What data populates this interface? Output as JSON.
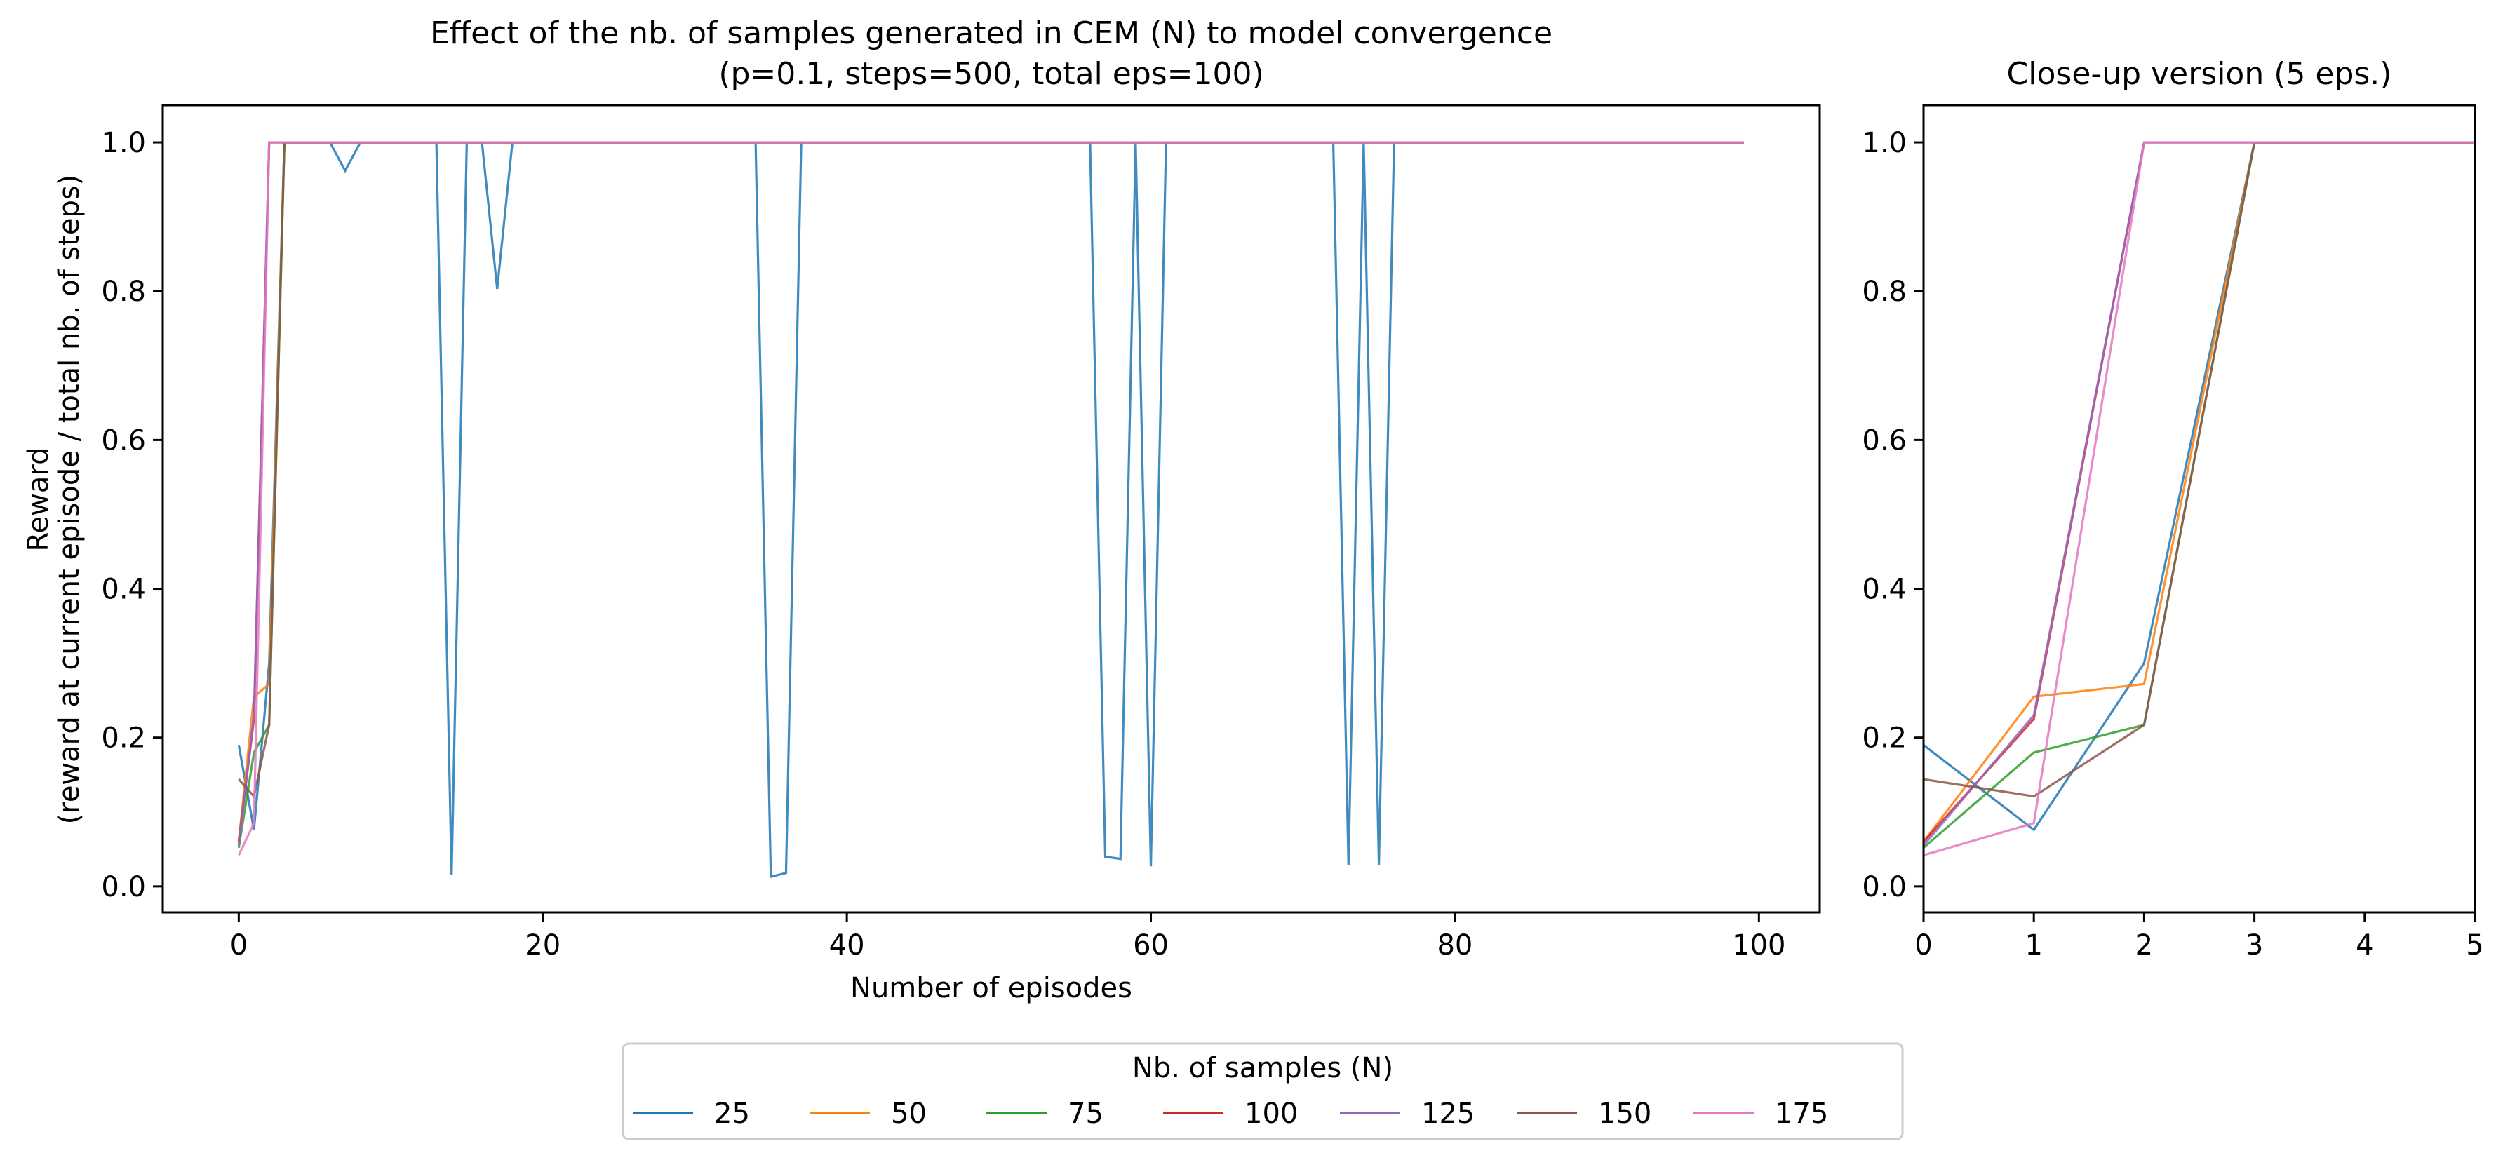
{
  "figure": {
    "legend": {
      "title": "Nb. of samples (N)",
      "placement": "bottom-center"
    }
  },
  "chart_data": [
    {
      "type": "line",
      "title": "Effect of the nb. of samples generated in CEM (N) to model convergence",
      "subtitle": "(p=0.1, steps=500, total eps=100)",
      "xlabel": "Number of episodes",
      "ylabel": "Reward",
      "ylabel2": "(reward at current episode / total nb. of steps)",
      "xlim": [
        -5,
        104
      ],
      "ylim": [
        -0.035,
        1.05
      ],
      "xticks": [
        0,
        20,
        40,
        60,
        80,
        100
      ],
      "yticks": [
        0.0,
        0.2,
        0.4,
        0.6,
        0.8,
        1.0
      ],
      "xtick_labels": [
        "0",
        "20",
        "40",
        "60",
        "80",
        "100"
      ],
      "ytick_labels": [
        "0.0",
        "0.2",
        "0.4",
        "0.6",
        "0.8",
        "1.0"
      ],
      "grid": false,
      "series": [
        {
          "name": "25",
          "color": "#1f77b4",
          "points": [
            [
              0,
              0.19
            ],
            [
              1,
              0.076
            ],
            [
              2,
              0.3
            ],
            [
              3,
              1.0
            ],
            [
              5,
              1.0
            ],
            [
              6,
              1.0
            ],
            [
              7,
              0.962
            ],
            [
              8,
              1.0
            ],
            [
              13,
              1.0
            ],
            [
              14,
              0.015
            ],
            [
              15,
              1.0
            ],
            [
              16,
              1.0
            ],
            [
              17,
              0.803
            ],
            [
              18,
              1.0
            ],
            [
              34,
              1.0
            ],
            [
              35,
              0.013
            ],
            [
              36,
              0.018
            ],
            [
              37,
              1.0
            ],
            [
              56,
              1.0
            ],
            [
              57,
              0.04
            ],
            [
              58,
              0.037
            ],
            [
              59,
              1.0
            ],
            [
              60,
              0.027
            ],
            [
              61,
              1.0
            ],
            [
              72,
              1.0
            ],
            [
              73,
              0.029
            ],
            [
              74,
              1.0
            ],
            [
              75,
              0.029
            ],
            [
              76,
              1.0
            ],
            [
              99,
              1.0
            ]
          ]
        },
        {
          "name": "50",
          "color": "#ff7f0e",
          "points": [
            [
              0,
              0.06
            ],
            [
              1,
              0.255
            ],
            [
              2,
              0.272
            ],
            [
              3,
              1.0
            ],
            [
              99,
              1.0
            ]
          ]
        },
        {
          "name": "75",
          "color": "#2ca02c",
          "points": [
            [
              0,
              0.052
            ],
            [
              1,
              0.18
            ],
            [
              2,
              0.217
            ],
            [
              3,
              1.0
            ],
            [
              99,
              1.0
            ]
          ]
        },
        {
          "name": "100",
          "color": "#d62728",
          "points": [
            [
              0,
              0.06
            ],
            [
              1,
              0.225
            ],
            [
              2,
              1.0
            ],
            [
              99,
              1.0
            ]
          ]
        },
        {
          "name": "125",
          "color": "#9467bd",
          "points": [
            [
              0,
              0.055
            ],
            [
              1,
              0.23
            ],
            [
              2,
              1.0
            ],
            [
              99,
              1.0
            ]
          ]
        },
        {
          "name": "150",
          "color": "#8c564b",
          "points": [
            [
              0,
              0.144
            ],
            [
              1,
              0.121
            ],
            [
              2,
              0.217
            ],
            [
              3,
              1.0
            ],
            [
              99,
              1.0
            ]
          ]
        },
        {
          "name": "175",
          "color": "#e377c2",
          "points": [
            [
              0,
              0.042
            ],
            [
              1,
              0.085
            ],
            [
              2,
              1.0
            ],
            [
              99,
              1.0
            ]
          ]
        }
      ]
    },
    {
      "type": "line",
      "title": "Close-up version (5 eps.)",
      "xlim": [
        0,
        5
      ],
      "ylim": [
        -0.035,
        1.05
      ],
      "xticks": [
        0,
        1,
        2,
        3,
        4,
        5
      ],
      "yticks": [
        0.0,
        0.2,
        0.4,
        0.6,
        0.8,
        1.0
      ],
      "xtick_labels": [
        "0",
        "1",
        "2",
        "3",
        "4",
        "5"
      ],
      "ytick_labels": [
        "0.0",
        "0.2",
        "0.4",
        "0.6",
        "0.8",
        "1.0"
      ],
      "grid": false,
      "series": [
        {
          "name": "25",
          "color": "#1f77b4",
          "points": [
            [
              0,
              0.19
            ],
            [
              1,
              0.076
            ],
            [
              2,
              0.3
            ],
            [
              3,
              1.0
            ],
            [
              4,
              1.0
            ],
            [
              5,
              1.0
            ]
          ]
        },
        {
          "name": "50",
          "color": "#ff7f0e",
          "points": [
            [
              0,
              0.06
            ],
            [
              1,
              0.255
            ],
            [
              2,
              0.272
            ],
            [
              3,
              1.0
            ],
            [
              4,
              1.0
            ],
            [
              5,
              1.0
            ]
          ]
        },
        {
          "name": "75",
          "color": "#2ca02c",
          "points": [
            [
              0,
              0.052
            ],
            [
              1,
              0.18
            ],
            [
              2,
              0.217
            ],
            [
              3,
              1.0
            ],
            [
              4,
              1.0
            ],
            [
              5,
              1.0
            ]
          ]
        },
        {
          "name": "100",
          "color": "#d62728",
          "points": [
            [
              0,
              0.06
            ],
            [
              1,
              0.225
            ],
            [
              2,
              1.0
            ],
            [
              3,
              1.0
            ],
            [
              4,
              1.0
            ],
            [
              5,
              1.0
            ]
          ]
        },
        {
          "name": "125",
          "color": "#9467bd",
          "points": [
            [
              0,
              0.055
            ],
            [
              1,
              0.23
            ],
            [
              2,
              1.0
            ],
            [
              3,
              1.0
            ],
            [
              4,
              1.0
            ],
            [
              5,
              1.0
            ]
          ]
        },
        {
          "name": "150",
          "color": "#8c564b",
          "points": [
            [
              0,
              0.144
            ],
            [
              1,
              0.121
            ],
            [
              2,
              0.217
            ],
            [
              3,
              1.0
            ],
            [
              4,
              1.0
            ],
            [
              5,
              1.0
            ]
          ]
        },
        {
          "name": "175",
          "color": "#e377c2",
          "points": [
            [
              0,
              0.042
            ],
            [
              1,
              0.085
            ],
            [
              2,
              1.0
            ],
            [
              3,
              1.0
            ],
            [
              4,
              1.0
            ],
            [
              5,
              1.0
            ]
          ]
        }
      ]
    }
  ]
}
